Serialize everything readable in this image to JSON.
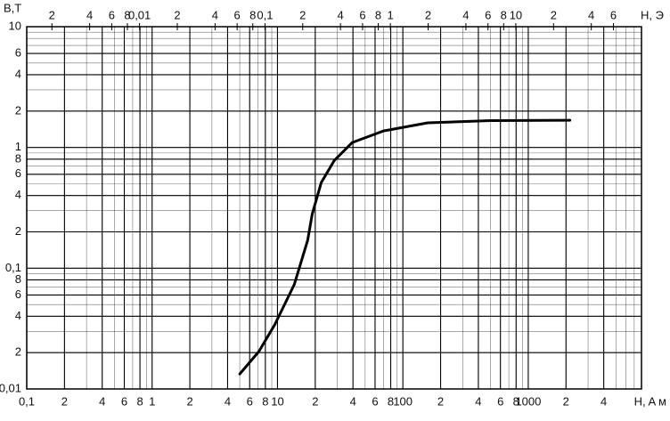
{
  "chart_data": {
    "type": "line",
    "y_label": "B,T",
    "x_label": "H, A м",
    "x2_label": "H, Э",
    "log_x": true,
    "log_y": true,
    "grid": true,
    "minor_grid": true,
    "color": "#000000",
    "xlim": [
      0.1,
      8000
    ],
    "ylim": [
      0.01,
      10
    ],
    "x2lim": [
      0.00126,
      100.5
    ],
    "xticks": [
      {
        "value": 0.1,
        "label": "0,1"
      },
      {
        "value": 0.2,
        "label": "2"
      },
      {
        "value": 0.4,
        "label": "4"
      },
      {
        "value": 0.6,
        "label": "6"
      },
      {
        "value": 0.8,
        "label": "8"
      },
      1,
      {
        "value": 2,
        "label": "2"
      },
      {
        "value": 4,
        "label": "4"
      },
      {
        "value": 6,
        "label": "6"
      },
      {
        "value": 8,
        "label": "8"
      },
      10,
      {
        "value": 20,
        "label": "2"
      },
      {
        "value": 40,
        "label": "4"
      },
      {
        "value": 60,
        "label": "6"
      },
      {
        "value": 80,
        "label": "8"
      },
      100,
      {
        "value": 200,
        "label": "2"
      },
      {
        "value": 400,
        "label": "4"
      },
      {
        "value": 600,
        "label": "6"
      },
      {
        "value": 800,
        "label": "8"
      },
      1000,
      {
        "value": 2000,
        "label": "2"
      },
      {
        "value": 4000,
        "label": "4"
      }
    ],
    "x2ticks": [
      {
        "value": 0.002,
        "label": "2"
      },
      {
        "value": 0.004,
        "label": "4"
      },
      {
        "value": 0.006,
        "label": "6"
      },
      {
        "value": 0.008,
        "label": "8"
      },
      {
        "value": 0.01,
        "label": "0,01"
      },
      {
        "value": 0.02,
        "label": "2"
      },
      {
        "value": 0.04,
        "label": "4"
      },
      {
        "value": 0.06,
        "label": "6"
      },
      {
        "value": 0.08,
        "label": "8"
      },
      {
        "value": 0.1,
        "label": "0,1"
      },
      {
        "value": 0.2,
        "label": "2"
      },
      {
        "value": 0.4,
        "label": "4"
      },
      {
        "value": 0.6,
        "label": "6"
      },
      {
        "value": 0.8,
        "label": "8"
      },
      1,
      {
        "value": 2,
        "label": "2"
      },
      {
        "value": 4,
        "label": "4"
      },
      {
        "value": 6,
        "label": "6"
      },
      {
        "value": 8,
        "label": "8"
      },
      10,
      {
        "value": 20,
        "label": "2"
      },
      {
        "value": 40,
        "label": "4"
      },
      {
        "value": 60,
        "label": "6"
      }
    ],
    "yticks": [
      {
        "value": 0.01,
        "label": "0,01"
      },
      {
        "value": 0.02,
        "label": "2"
      },
      {
        "value": 0.04,
        "label": "4"
      },
      {
        "value": 0.06,
        "label": "6"
      },
      {
        "value": 0.08,
        "label": "8"
      },
      {
        "value": 0.1,
        "label": "0,1"
      },
      {
        "value": 0.2,
        "label": "2"
      },
      {
        "value": 0.4,
        "label": "4"
      },
      {
        "value": 0.6,
        "label": "6"
      },
      {
        "value": 0.8,
        "label": "8"
      },
      1,
      {
        "value": 2,
        "label": "2"
      },
      {
        "value": 4,
        "label": "4"
      },
      {
        "value": 6,
        "label": "6"
      },
      10
    ],
    "x": [
      5,
      7.1,
      9.5,
      13.6,
      17.4,
      18.9,
      22.3,
      28.4,
      39.5,
      70,
      158,
      500,
      2150
    ],
    "values": [
      0.0133,
      0.0204,
      0.034,
      0.073,
      0.17,
      0.28,
      0.51,
      0.78,
      1.1,
      1.37,
      1.6,
      1.67,
      1.68
    ]
  }
}
